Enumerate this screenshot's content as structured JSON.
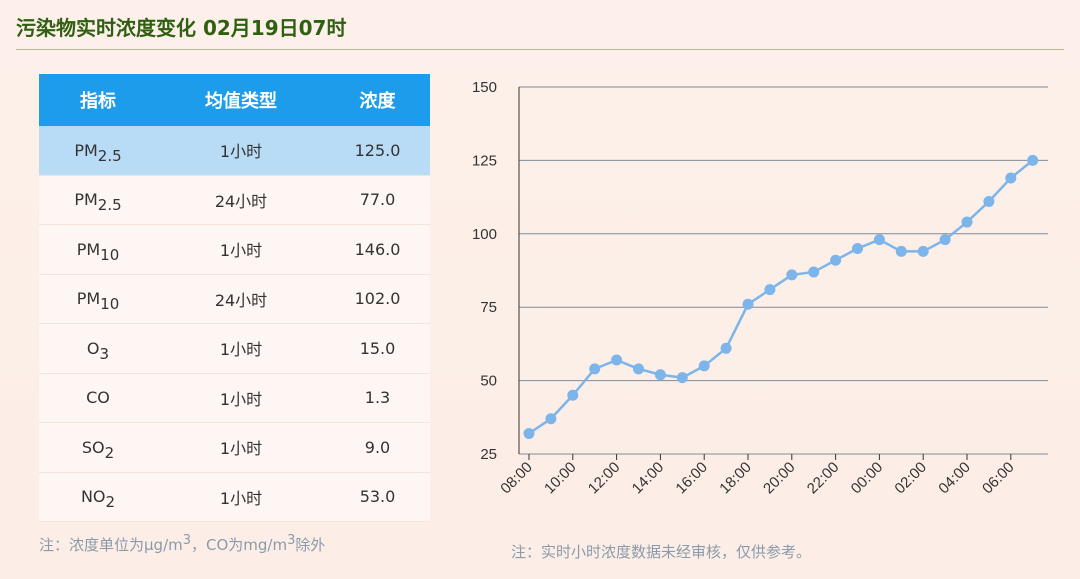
{
  "header": {
    "title": "污染物实时浓度变化 02月19日07时"
  },
  "table": {
    "columns": [
      "指标",
      "均值类型",
      "浓度"
    ],
    "rows": [
      {
        "name": "PM",
        "sub": "2.5",
        "type": "1小时",
        "value": "125.0",
        "highlight": true
      },
      {
        "name": "PM",
        "sub": "2.5",
        "type": "24小时",
        "value": "77.0",
        "highlight": false
      },
      {
        "name": "PM",
        "sub": "10",
        "type": "1小时",
        "value": "146.0",
        "highlight": false
      },
      {
        "name": "PM",
        "sub": "10",
        "type": "24小时",
        "value": "102.0",
        "highlight": false
      },
      {
        "name": "O",
        "sub": "3",
        "type": "1小时",
        "value": "15.0",
        "highlight": false
      },
      {
        "name": "CO",
        "sub": "",
        "type": "1小时",
        "value": "1.3",
        "highlight": false
      },
      {
        "name": "SO",
        "sub": "2",
        "type": "1小时",
        "value": "9.0",
        "highlight": false
      },
      {
        "name": "NO",
        "sub": "2",
        "type": "1小时",
        "value": "53.0",
        "highlight": false
      }
    ]
  },
  "notes": {
    "left_prefix": "注：浓度单位为μg/m",
    "left_sup1": "3",
    "left_mid": "，CO为mg/m",
    "left_sup2": "3",
    "left_suffix": "除外",
    "right": "注：实时小时浓度数据未经审核，仅供参考。"
  },
  "chart_data": {
    "type": "line",
    "x": [
      "08:00",
      "09:00",
      "10:00",
      "11:00",
      "12:00",
      "13:00",
      "14:00",
      "15:00",
      "16:00",
      "17:00",
      "18:00",
      "19:00",
      "20:00",
      "21:00",
      "22:00",
      "23:00",
      "00:00",
      "01:00",
      "02:00",
      "03:00",
      "04:00",
      "05:00",
      "06:00",
      "07:00"
    ],
    "x_tick_labels": [
      "08:00",
      "10:00",
      "12:00",
      "14:00",
      "16:00",
      "18:00",
      "20:00",
      "22:00",
      "00:00",
      "02:00",
      "04:00",
      "06:00"
    ],
    "series": [
      {
        "values": [
          32,
          37,
          45,
          54,
          57,
          54,
          52,
          51,
          55,
          61,
          76,
          81,
          86,
          87,
          91,
          95,
          98,
          94,
          94,
          98,
          104,
          111,
          119,
          125
        ]
      }
    ],
    "ylim": [
      25,
      150
    ],
    "yticks": [
      25,
      50,
      75,
      100,
      125,
      150
    ],
    "grid": true,
    "colors": {
      "line": "#7db4ea",
      "grid": "#7f8c99"
    }
  }
}
